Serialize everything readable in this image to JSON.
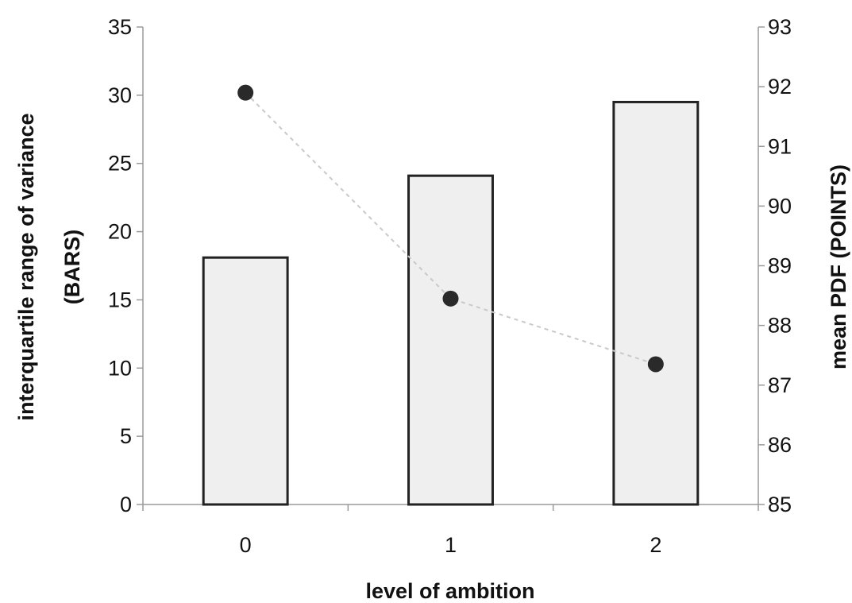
{
  "chart_data": {
    "type": "bar",
    "categories": [
      "0",
      "1",
      "2"
    ],
    "xlabel": "level of ambition",
    "series": [
      {
        "axis": "left",
        "kind": "bar",
        "values": [
          18.1,
          24.1,
          29.5
        ]
      },
      {
        "axis": "right",
        "kind": "scatter",
        "values": [
          91.9,
          88.45,
          87.35
        ]
      }
    ],
    "left_axis": {
      "label_line1": "interquartile range of variance",
      "label_line2": "(BARS)",
      "ylim": [
        0,
        35
      ],
      "ticks": [
        "0",
        "5",
        "10",
        "15",
        "20",
        "25",
        "30",
        "35"
      ]
    },
    "right_axis": {
      "label": "mean PDF (POINTS)",
      "ylim": [
        85,
        93
      ],
      "ticks": [
        "85",
        "86",
        "87",
        "88",
        "89",
        "90",
        "91",
        "92",
        "93"
      ]
    },
    "grid": false,
    "colors": {
      "bar_fill": "#efefef",
      "bar_stroke": "#222222",
      "point": "#2a2a2a",
      "trend_line": "#c9c9c9"
    }
  }
}
